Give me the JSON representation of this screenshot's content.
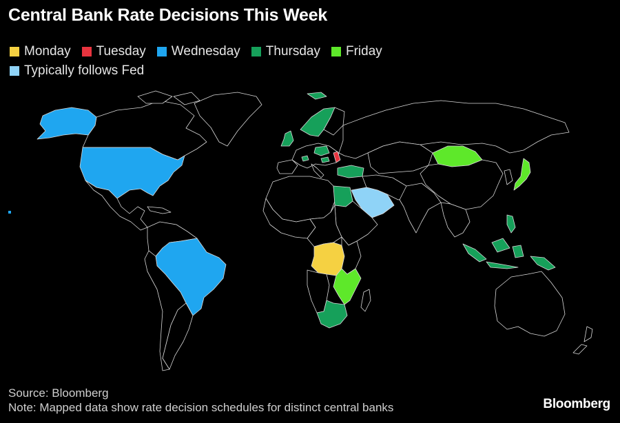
{
  "title": "Central Bank Rate Decisions This Week",
  "legend": [
    {
      "label": "Monday",
      "color": "#f5d142"
    },
    {
      "label": "Tuesday",
      "color": "#e8343f"
    },
    {
      "label": "Wednesday",
      "color": "#1fa6f0"
    },
    {
      "label": "Thursday",
      "color": "#16a05a"
    },
    {
      "label": "Friday",
      "color": "#5ee82a"
    },
    {
      "label": "Typically follows Fed",
      "color": "#8fd3f7"
    }
  ],
  "colors": {
    "background": "#000000",
    "land": "#000000",
    "border": "#d9d9d9"
  },
  "footer": {
    "source": "Source: Bloomberg",
    "note": "Note: Mapped data show rate decision schedules for distinct central banks",
    "logo": "Bloomberg"
  }
}
